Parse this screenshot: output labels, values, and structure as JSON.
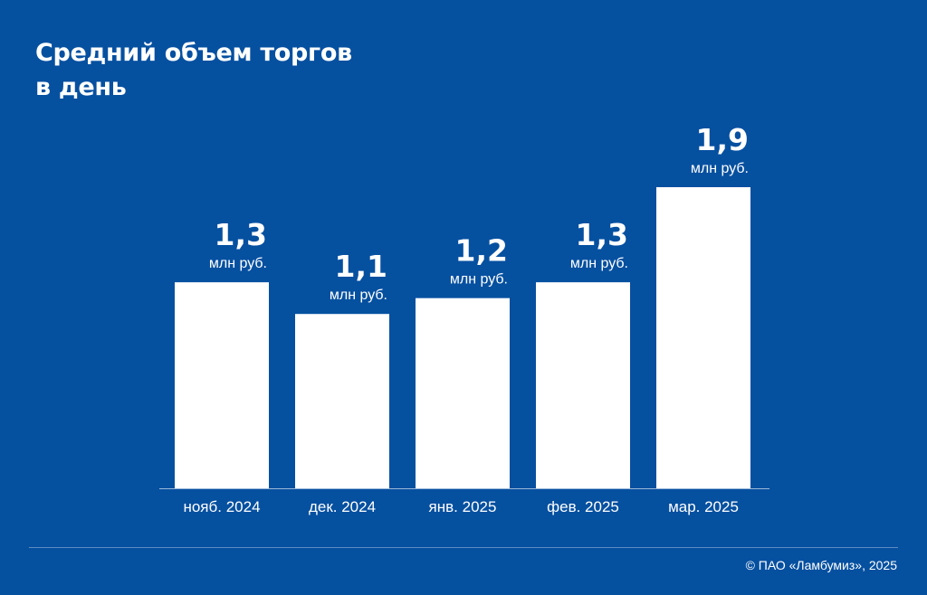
{
  "header": {
    "title_line1": "Средний объем торгов",
    "title_line2": "в день"
  },
  "colors": {
    "background": "#0650a0",
    "bar": "#ffffff",
    "text": "#ffffff"
  },
  "chart_data": {
    "type": "bar",
    "title": "Средний объем торгов в день",
    "categories": [
      "нояб. 2024",
      "дек. 2024",
      "янв. 2025",
      "фев. 2025",
      "мар. 2025"
    ],
    "values": [
      1.3,
      1.1,
      1.2,
      1.3,
      1.9
    ],
    "value_labels": [
      "1,3",
      "1,1",
      "1,2",
      "1,3",
      "1,9"
    ],
    "unit_label": "млн руб.",
    "xlabel": "",
    "ylabel": "",
    "ylim": [
      0,
      1.9
    ],
    "grid": false
  },
  "footer": {
    "copyright": "© ПАО «Ламбумиз», 2025"
  }
}
